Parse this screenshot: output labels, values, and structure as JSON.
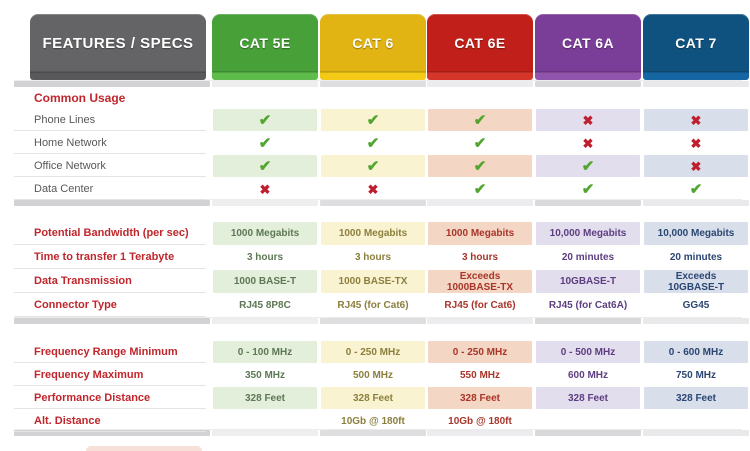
{
  "chart_data": {
    "type": "table",
    "title": "FEATURES / SPECS",
    "columns": [
      {
        "id": "cat5e",
        "label": "CAT 5E",
        "color": "#47a038",
        "strip": "#5ebc4b",
        "tint": "#e3efda",
        "text_color": "#5d7855"
      },
      {
        "id": "cat6",
        "label": "CAT 6",
        "color": "#e1b414",
        "strip": "#f5ca16",
        "tint": "#faf3d1",
        "text_color": "#8b7f3e"
      },
      {
        "id": "cat6e",
        "label": "CAT 6E",
        "color": "#c02019",
        "strip": "#d4362a",
        "tint": "#f3d6c3",
        "text_color": "#a8352a"
      },
      {
        "id": "cat6a",
        "label": "CAT 6A",
        "color": "#7a3d98",
        "strip": "#9154ad",
        "tint": "#e3deee",
        "text_color": "#5d3e80"
      },
      {
        "id": "cat7",
        "label": "CAT 7",
        "color": "#10527f",
        "strip": "#1566a2",
        "tint": "#d8deea",
        "text_color": "#2b4672"
      }
    ],
    "sections": [
      {
        "title": "Common Usage",
        "kind": "marks",
        "rows": [
          {
            "label": "Phone Lines",
            "tinted": true,
            "values": [
              "check",
              "check",
              "check",
              "cross",
              "cross"
            ]
          },
          {
            "label": "Home Network",
            "tinted": false,
            "values": [
              "check",
              "check",
              "check",
              "cross",
              "cross"
            ]
          },
          {
            "label": "Office Network",
            "tinted": true,
            "values": [
              "check",
              "check",
              "check",
              "check",
              "cross"
            ]
          },
          {
            "label": "Data Center",
            "tinted": false,
            "values": [
              "cross",
              "cross",
              "check",
              "check",
              "check"
            ]
          }
        ]
      },
      {
        "title": "",
        "kind": "text",
        "rows": [
          {
            "label": "Potential Bandwidth (per sec)",
            "tinted": true,
            "values": [
              "1000 Megabits",
              "1000 Megabits",
              "1000 Megabits",
              "10,000 Megabits",
              "10,000 Megabits"
            ]
          },
          {
            "label": "Time to transfer 1 Terabyte",
            "tinted": false,
            "values": [
              "3 hours",
              "3 hours",
              "3 hours",
              "20 minutes",
              "20 minutes"
            ]
          },
          {
            "label": "Data Transmission",
            "tinted": true,
            "values": [
              "1000 BASE-T",
              "1000 BASE-TX",
              "Exceeds\n1000BASE-TX",
              "10GBASE-T",
              "Exceeds\n10GBASE-T"
            ]
          },
          {
            "label": "Connector Type",
            "tinted": false,
            "values": [
              "RJ45 8P8C",
              "RJ45 (for Cat6)",
              "RJ45 (for Cat6)",
              "RJ45 (for Cat6A)",
              "GG45"
            ]
          }
        ]
      },
      {
        "title": "",
        "kind": "text",
        "rows": [
          {
            "label": "Frequency Range Minimum",
            "tinted": true,
            "values": [
              "0 - 100 MHz",
              "0 - 250 MHz",
              "0 - 250 MHz",
              "0 - 500 MHz",
              "0 - 600 MHz"
            ]
          },
          {
            "label": "Frequency Maximum",
            "tinted": false,
            "values": [
              "350 MHz",
              "500 MHz",
              "550 MHz",
              "600 MHz",
              "750 MHz"
            ]
          },
          {
            "label": "Performance Distance",
            "tinted": true,
            "values": [
              "328 Feet",
              "328 Feet",
              "328 Feet",
              "328 Feet",
              "328 Feet"
            ]
          },
          {
            "label": "Alt. Distance",
            "tinted": false,
            "values": [
              "",
              "10Gb @ 180ft",
              "10Gb @ 180ft",
              "",
              ""
            ]
          }
        ]
      }
    ]
  },
  "marks": {
    "check": "✔",
    "cross": "✖"
  },
  "colors": {
    "label_tab": "#646467",
    "label_tab_strip": "#59595c",
    "section_label_red": "#c0262c",
    "usage_label_gray": "#58585a",
    "check_green": "#52a62f",
    "cross_red": "#be1e2d"
  }
}
